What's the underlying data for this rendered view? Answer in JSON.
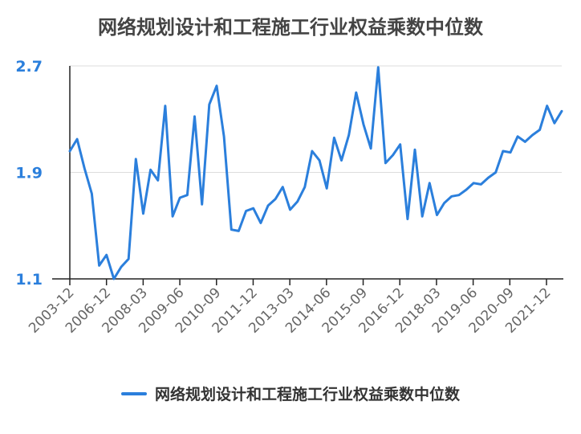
{
  "chart_data": {
    "type": "line",
    "title": "网络规划设计和工程施工行业权益乘数中位数",
    "xlabel": "",
    "ylabel": "",
    "ylim": [
      1.1,
      2.7
    ],
    "yticks": [
      "1.1",
      "1.9",
      "2.7"
    ],
    "xtick_labels": [
      "2003-12",
      "2006-12",
      "2008-03",
      "2009-06",
      "2010-09",
      "2011-12",
      "2013-03",
      "2014-06",
      "2015-09",
      "2016-12",
      "2018-03",
      "2019-06",
      "2020-09",
      "2021-12"
    ],
    "grid": true,
    "legend": "bottom",
    "series": [
      {
        "name": "网络规划设计和工程施工行业权益乘数中位数",
        "color": "#2b7fdc",
        "values": [
          2.06,
          2.15,
          1.93,
          1.74,
          1.2,
          1.28,
          1.1,
          1.19,
          1.25,
          2.0,
          1.59,
          1.92,
          1.84,
          2.4,
          1.57,
          1.71,
          1.73,
          2.32,
          1.66,
          2.41,
          2.55,
          2.17,
          1.47,
          1.46,
          1.61,
          1.63,
          1.52,
          1.65,
          1.7,
          1.79,
          1.62,
          1.68,
          1.79,
          2.06,
          1.99,
          1.78,
          2.16,
          1.99,
          2.18,
          2.5,
          2.26,
          2.08,
          2.69,
          1.97,
          2.03,
          2.11,
          1.55,
          2.07,
          1.57,
          1.82,
          1.58,
          1.67,
          1.72,
          1.73,
          1.77,
          1.82,
          1.81,
          1.86,
          1.9,
          2.06,
          2.05,
          2.17,
          2.13,
          2.18,
          2.22,
          2.4,
          2.27,
          2.36
        ]
      }
    ]
  }
}
